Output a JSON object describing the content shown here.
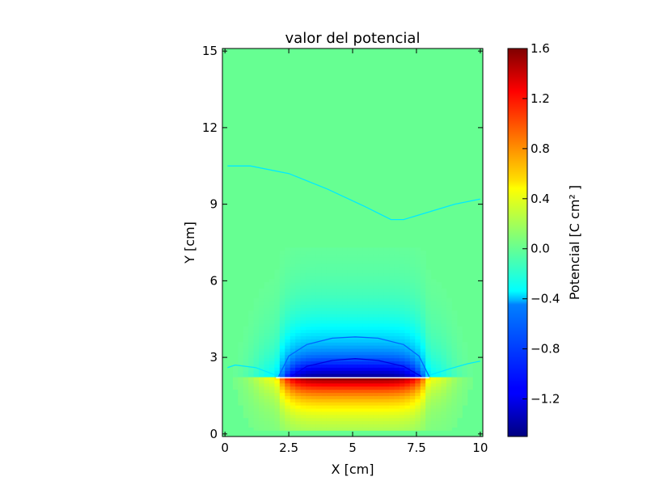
{
  "chart_data": {
    "type": "heatmap",
    "title": "valor del potencial",
    "xlabel": "X [cm]",
    "ylabel": "Y [cm]",
    "xlim": [
      -0.1,
      10.1
    ],
    "ylim": [
      -0.1,
      15.1
    ],
    "x_ticks": [
      0,
      2.5,
      5,
      7.5,
      10
    ],
    "x_tick_labels": [
      "0",
      "2.5",
      "5",
      "7.5",
      "10"
    ],
    "y_ticks": [
      0,
      3,
      6,
      9,
      12,
      15
    ],
    "y_tick_labels": [
      "0",
      "3",
      "6",
      "9",
      "12",
      "15"
    ],
    "colormap": "jet",
    "colorbar": {
      "label": "Potencial [C cm² ]",
      "range": [
        -1.5,
        1.6
      ],
      "ticks": [
        1.6,
        1.2,
        0.8,
        0.4,
        0.0,
        -0.4,
        -0.8,
        -1.2
      ],
      "tick_labels": [
        "1.6",
        "1.2",
        "0.8",
        "0.4",
        "0.0",
        "−0.4",
        "−0.8",
        "−1.2"
      ]
    },
    "background_value": 0.0,
    "charged_plate": {
      "x_range": [
        2.0,
        8.0
      ],
      "y_value": 2.2,
      "value_below_max": 1.6,
      "value_above_min": -1.5
    },
    "contours": [
      {
        "level": -0.4,
        "points": [
          [
            0.1,
            10.5
          ],
          [
            1.0,
            10.5
          ],
          [
            2.5,
            10.2
          ],
          [
            4.0,
            9.6
          ],
          [
            5.5,
            8.9
          ],
          [
            6.5,
            8.4
          ],
          [
            7.0,
            8.4
          ],
          [
            8.0,
            8.7
          ],
          [
            9.0,
            9.0
          ],
          [
            10.0,
            9.2
          ]
        ]
      },
      {
        "level": -0.4,
        "points": [
          [
            0.1,
            2.6
          ],
          [
            0.4,
            2.7
          ],
          [
            1.2,
            2.6
          ],
          [
            2.0,
            2.3
          ]
        ]
      },
      {
        "level": -0.4,
        "points": [
          [
            8.0,
            2.3
          ],
          [
            8.8,
            2.55
          ],
          [
            9.5,
            2.75
          ],
          [
            10.0,
            2.85
          ]
        ]
      },
      {
        "level": -0.8,
        "points": [
          [
            2.1,
            2.25
          ],
          [
            2.5,
            3.05
          ],
          [
            3.2,
            3.5
          ],
          [
            4.2,
            3.75
          ],
          [
            5.1,
            3.8
          ],
          [
            6.0,
            3.75
          ],
          [
            7.0,
            3.5
          ],
          [
            7.6,
            3.05
          ],
          [
            8.0,
            2.25
          ]
        ]
      },
      {
        "level": -1.2,
        "points": [
          [
            2.6,
            2.25
          ],
          [
            3.2,
            2.65
          ],
          [
            4.2,
            2.88
          ],
          [
            5.1,
            2.95
          ],
          [
            6.0,
            2.88
          ],
          [
            7.0,
            2.65
          ],
          [
            7.7,
            2.25
          ]
        ]
      }
    ]
  }
}
